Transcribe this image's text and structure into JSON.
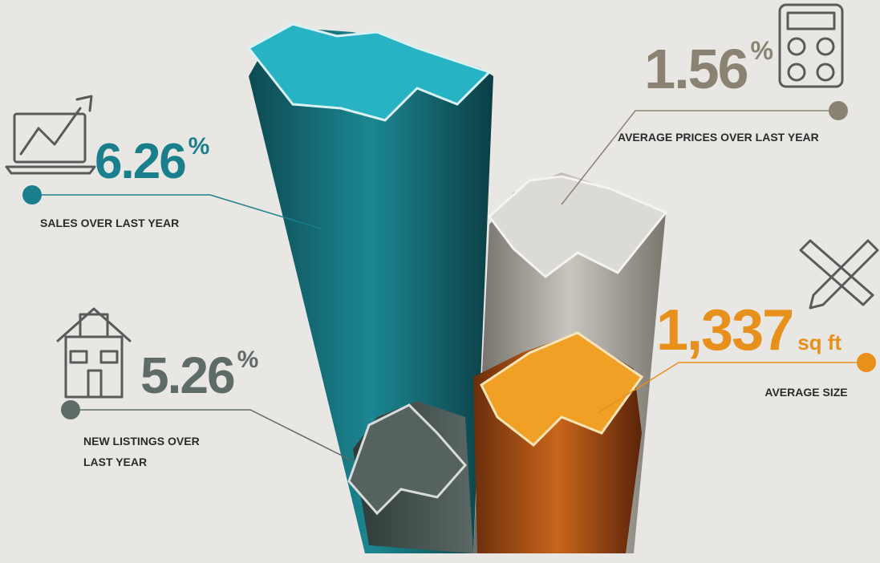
{
  "stats": [
    {
      "value": "6.26",
      "unit": "%",
      "label": [
        "SALES OVER LAST YEAR"
      ]
    },
    {
      "value": "1.56",
      "unit": "%",
      "label": [
        "AVERAGE PRICES OVER LAST YEAR"
      ]
    },
    {
      "value": "5.26",
      "unit": "%",
      "label": [
        "NEW LISTINGS OVER",
        "LAST YEAR"
      ]
    },
    {
      "value": "1,337",
      "unit": "sq ft",
      "label": [
        "AVERAGE SIZE"
      ]
    }
  ]
}
